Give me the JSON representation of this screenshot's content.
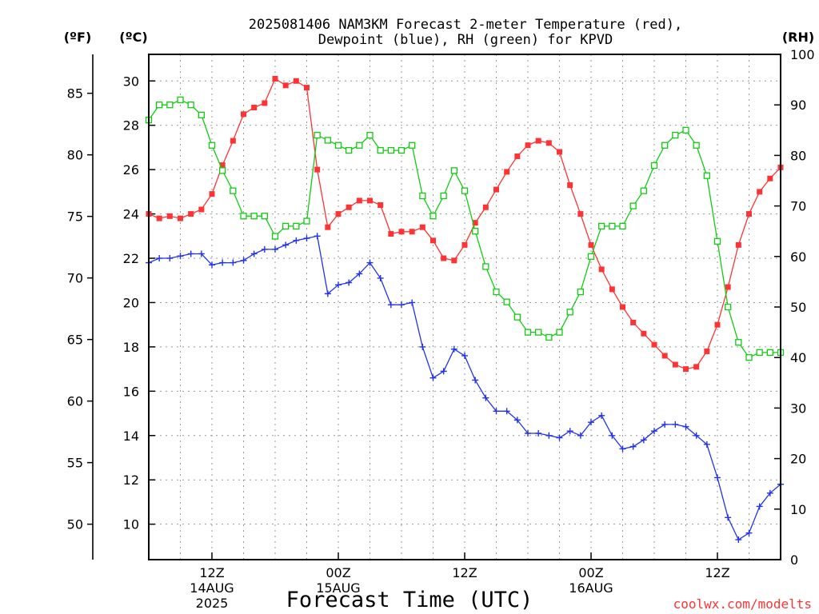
{
  "chart_data": {
    "type": "line",
    "title": "2025081406 NAM3KM Forecast 2-meter Temperature (red),",
    "title_line2": "Dewpoint (blue), RH (green) for KPVD",
    "axis_labels": {
      "fahrenheit": "(ºF)",
      "celsius": "(ºC)",
      "rh": "(RH)"
    },
    "xlabel": "Forecast Time (UTC)",
    "credit": "coolwx.com/modelts",
    "celsius_ticks": [
      "30",
      "28",
      "26",
      "24",
      "22",
      "20",
      "18",
      "16",
      "14",
      "12",
      "10"
    ],
    "fahrenheit_ticks": [
      "85",
      "80",
      "75",
      "70",
      "65",
      "60",
      "55",
      "50"
    ],
    "rh_ticks": [
      "100",
      "90",
      "80",
      "70",
      "60",
      "50",
      "40",
      "30",
      "20",
      "10",
      "0"
    ],
    "celsius_range": [
      8.4,
      31.2
    ],
    "rh_range": [
      0,
      100
    ],
    "grid": true,
    "x_ticks": [
      {
        "hour": 6,
        "line1": "12Z",
        "line2": "14AUG",
        "line3": "2025"
      },
      {
        "hour": 18,
        "line1": "00Z",
        "line2": "15AUG",
        "line3": ""
      },
      {
        "hour": 30,
        "line1": "12Z",
        "line2": "",
        "line3": ""
      },
      {
        "hour": 42,
        "line1": "00Z",
        "line2": "16AUG",
        "line3": ""
      },
      {
        "hour": 54,
        "line1": "12Z",
        "line2": "",
        "line3": ""
      }
    ],
    "x_range": [
      0,
      60
    ],
    "x_hours": [
      0,
      1,
      2,
      3,
      4,
      5,
      6,
      7,
      8,
      9,
      10,
      11,
      12,
      13,
      14,
      15,
      16,
      17,
      18,
      19,
      20,
      21,
      22,
      23,
      24,
      25,
      26,
      27,
      28,
      29,
      30,
      31,
      32,
      33,
      34,
      35,
      36,
      37,
      38,
      39,
      40,
      41,
      42,
      43,
      44,
      45,
      46,
      47,
      48,
      49,
      50,
      51,
      52,
      53,
      54,
      55,
      56,
      57,
      58,
      59,
      60
    ],
    "series": [
      {
        "name": "Temperature",
        "axis": "celsius",
        "color": "#ff3333",
        "marker": "filled-square",
        "values": [
          24.0,
          23.8,
          23.9,
          23.8,
          24.0,
          24.2,
          24.9,
          26.2,
          27.3,
          28.5,
          28.8,
          29.0,
          30.1,
          29.8,
          30.0,
          29.7,
          26.0,
          23.4,
          24.0,
          24.3,
          24.6,
          24.6,
          24.4,
          23.1,
          23.2,
          23.2,
          23.4,
          22.8,
          22.0,
          21.9,
          22.6,
          23.6,
          24.3,
          25.1,
          25.9,
          26.6,
          27.1,
          27.3,
          27.2,
          26.8,
          25.3,
          24.0,
          22.6,
          21.5,
          20.6,
          19.8,
          19.1,
          18.6,
          18.1,
          17.6,
          17.2,
          17.0,
          17.1,
          17.8,
          19.0,
          20.7,
          22.6,
          24.0,
          25.0,
          25.6,
          26.1
        ]
      },
      {
        "name": "Dewpoint",
        "axis": "celsius",
        "color": "#2233ee",
        "marker": "plus",
        "values": [
          21.8,
          22.0,
          22.0,
          22.1,
          22.2,
          22.2,
          21.7,
          21.8,
          21.8,
          21.9,
          22.2,
          22.4,
          22.4,
          22.6,
          22.8,
          22.9,
          23.0,
          20.4,
          20.8,
          20.9,
          21.3,
          21.8,
          21.1,
          19.9,
          19.9,
          20.0,
          18.0,
          16.6,
          16.9,
          17.9,
          17.6,
          16.5,
          15.7,
          15.1,
          15.1,
          14.7,
          14.1,
          14.1,
          14.0,
          13.9,
          14.2,
          14.0,
          14.6,
          14.9,
          14.0,
          13.4,
          13.5,
          13.8,
          14.2,
          14.5,
          14.5,
          14.4,
          14.0,
          13.6,
          12.1,
          10.3,
          9.3,
          9.6,
          10.8,
          11.4,
          11.8
        ]
      },
      {
        "name": "RH",
        "axis": "rh",
        "color": "#11cc11",
        "marker": "open-square",
        "values": [
          87,
          90,
          90,
          91,
          90,
          88,
          82,
          77,
          73,
          68,
          68,
          68,
          64,
          66,
          66,
          67,
          84,
          83,
          82,
          81,
          82,
          84,
          81,
          81,
          81,
          82,
          72,
          68,
          72,
          77,
          73,
          65,
          58,
          53,
          51,
          48,
          45,
          45,
          44,
          45,
          49,
          53,
          60,
          66,
          66,
          66,
          70,
          73,
          78,
          82,
          84,
          85,
          82,
          76,
          63,
          50,
          43,
          40,
          41,
          41,
          41
        ]
      }
    ]
  }
}
